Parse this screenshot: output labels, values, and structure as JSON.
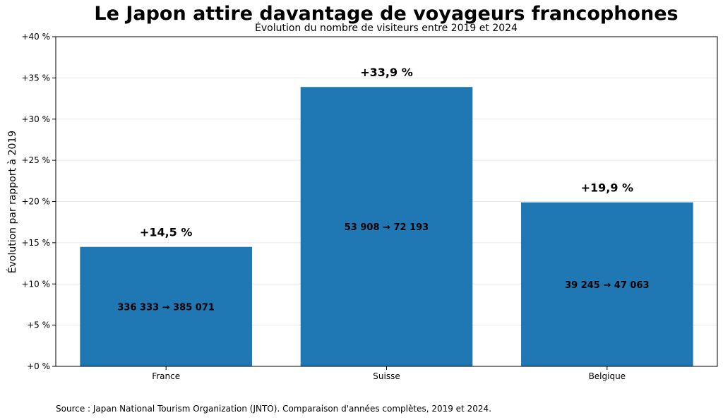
{
  "chart_data": {
    "type": "bar",
    "title": "Le Japon attire davantage de voyageurs francophones",
    "subtitle": "Évolution du nombre de visiteurs entre 2019 et 2024",
    "ylabel": "Évolution par rapport à 2019",
    "xlabel": "",
    "categories": [
      "France",
      "Suisse",
      "Belgique"
    ],
    "values": [
      14.5,
      33.9,
      19.9
    ],
    "value_labels": [
      "+14,5 %",
      "+33,9 %",
      "+19,9 %"
    ],
    "inner_labels": [
      "336 333 → 385 071",
      "53 908 → 72 193",
      "39 245 → 47 063"
    ],
    "ylim": [
      0,
      40
    ],
    "yticks": [
      0,
      5,
      10,
      15,
      20,
      25,
      30,
      35,
      40
    ],
    "ytick_labels": [
      "+0 %",
      "+5 %",
      "+10 %",
      "+15 %",
      "+20 %",
      "+25 %",
      "+30 %",
      "+35 %",
      "+40 %"
    ],
    "grid": true,
    "colors": {
      "bar": "#1f77b4",
      "grid": "#e8e8e8"
    },
    "source": "Source : Japan National Tourism Organization (JNTO). Comparaison d'années complètes, 2019 et 2024."
  }
}
